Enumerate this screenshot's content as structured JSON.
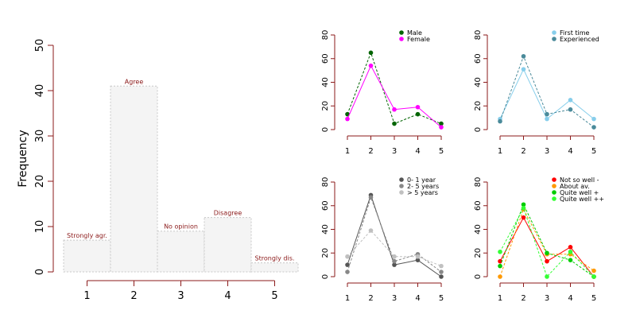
{
  "chart_data": [
    {
      "type": "bar",
      "categories": [
        "1",
        "2",
        "3",
        "4",
        "5"
      ],
      "values": [
        7,
        41,
        9,
        12,
        2
      ],
      "bar_labels": [
        "Strongly agr.",
        "Agree",
        "No opinion",
        "Disagree",
        "Strongly dis."
      ],
      "title": "",
      "xlabel": "",
      "ylabel": "Frequency",
      "ylim": [
        0,
        50
      ],
      "yticks": [
        0,
        10,
        20,
        30,
        40,
        50
      ],
      "colors": {
        "bar_fill": "#f4f4f4",
        "bar_border": "#c8c8c8",
        "axis": "#8b1a1a",
        "label": "#8b1a1a"
      }
    },
    {
      "type": "line",
      "x": [
        1,
        2,
        3,
        4,
        5
      ],
      "ylim": [
        0,
        80
      ],
      "yticks": [
        0,
        20,
        40,
        60,
        80
      ],
      "legend_position": "top-right",
      "series": [
        {
          "name": "Male",
          "values": [
            13,
            65,
            5,
            13,
            5
          ],
          "color": "#006400",
          "dash": "dashed"
        },
        {
          "name": "Female",
          "values": [
            9,
            54,
            17,
            19,
            2
          ],
          "color": "#ff00ff",
          "dash": "solid"
        }
      ]
    },
    {
      "type": "line",
      "x": [
        1,
        2,
        3,
        4,
        5
      ],
      "ylim": [
        0,
        80
      ],
      "yticks": [
        0,
        20,
        40,
        60,
        80
      ],
      "legend_position": "top-right",
      "series": [
        {
          "name": "First time",
          "values": [
            9,
            51,
            9,
            25,
            9
          ],
          "color": "#87ceeb",
          "dash": "solid"
        },
        {
          "name": "Experienced",
          "values": [
            7,
            62,
            13,
            17,
            2
          ],
          "color": "#4a8a9a",
          "dash": "dashed"
        }
      ]
    },
    {
      "type": "line",
      "x": [
        1,
        2,
        3,
        4,
        5
      ],
      "ylim": [
        0,
        80
      ],
      "yticks": [
        0,
        20,
        40,
        60,
        80
      ],
      "legend_position": "top-right",
      "series": [
        {
          "name": "0- 1 year",
          "values": [
            10,
            69,
            10,
            14,
            0
          ],
          "color": "#555555",
          "dash": "solid"
        },
        {
          "name": "2- 5 years",
          "values": [
            4,
            67,
            13,
            19,
            4
          ],
          "color": "#888888",
          "dash": "dashed"
        },
        {
          "name": "> 5 years",
          "values": [
            17,
            39,
            17,
            17,
            9
          ],
          "color": "#c0c0c0",
          "dash": "dashed"
        }
      ]
    },
    {
      "type": "line",
      "x": [
        1,
        2,
        3,
        4,
        5
      ],
      "ylim": [
        0,
        80
      ],
      "yticks": [
        0,
        20,
        40,
        60,
        80
      ],
      "legend_position": "top-right",
      "series": [
        {
          "name": "Not so well -",
          "values": [
            13,
            50,
            13,
            25,
            0
          ],
          "color": "#ff0000",
          "dash": "solid"
        },
        {
          "name": "About av.",
          "values": [
            0,
            57,
            19,
            19,
            5
          ],
          "color": "#ff9900",
          "dash": "dashed"
        },
        {
          "name": "Quite well +",
          "values": [
            9,
            61,
            20,
            14,
            0
          ],
          "color": "#00cc00",
          "dash": "dashed"
        },
        {
          "name": "Quite well ++",
          "values": [
            21,
            58,
            0,
            21,
            0
          ],
          "color": "#33ff33",
          "dash": "dashed"
        }
      ]
    }
  ]
}
